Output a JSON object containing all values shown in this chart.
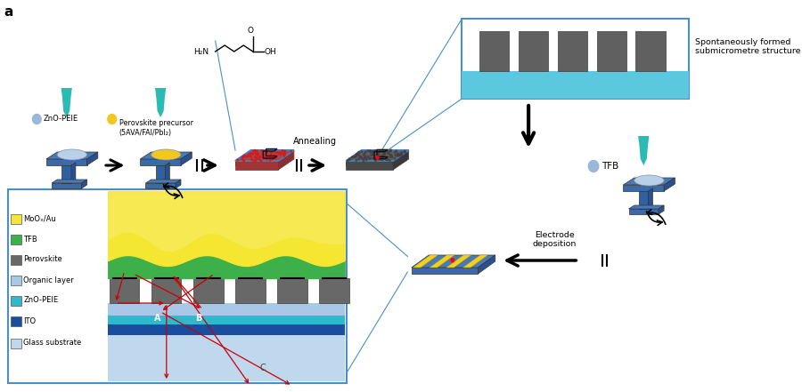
{
  "bg_color": "#ffffff",
  "teal_color": "#2bbbb4",
  "blue_platform_top": "#4a7ab5",
  "blue_platform_front": "#3a6aaa",
  "blue_platform_side": "#2a5090",
  "blue_pedestal": "#3060a0",
  "red_top": "#b84040",
  "red_front": "#a03535",
  "red_side": "#883030",
  "dark_top": "#606060",
  "dark_front": "#484848",
  "dark_side": "#383838",
  "box_border": "#4a90c8",
  "cyan_inset": "#5bc8e0",
  "inset_gray_block": "#606060",
  "arrow_color": "#111111",
  "red_arrow": "#cc0000",
  "layer_glass": "#c0d8ee",
  "layer_ito": "#1a4d9e",
  "layer_zno": "#30b8cc",
  "layer_organic": "#a8c8e8",
  "layer_pero": "#686868",
  "layer_tfb": "#3db04a",
  "layer_moo": "#f5e632",
  "yellow_precursor": "#f0c820",
  "legend_items": [
    [
      "MoOₓ/Au",
      "#f5e632"
    ],
    [
      "TFB",
      "#3db04a"
    ],
    [
      "Perovskite",
      "#686868"
    ],
    [
      "Organic layer",
      "#a8c8e8"
    ],
    [
      "ZnO-PEIE",
      "#30b8cc"
    ],
    [
      "ITO",
      "#1a4d9e"
    ],
    [
      "Glass substrate",
      "#c0d8ee"
    ]
  ]
}
